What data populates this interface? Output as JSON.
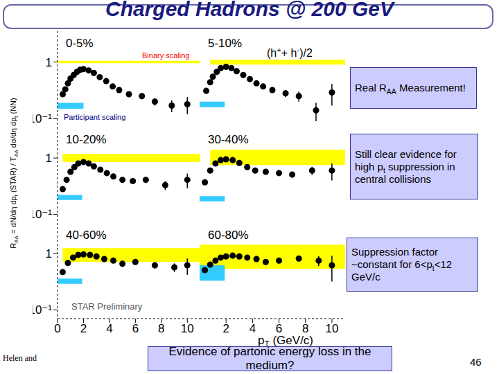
{
  "chart_data": [
    {
      "type": "scatter",
      "title": "0-5%",
      "color": "#000000",
      "marker": "circle",
      "log": "y",
      "x": [
        0.4,
        0.6,
        0.8,
        1.0,
        1.25,
        1.5,
        1.75,
        2.0,
        2.4,
        2.8,
        3.25,
        3.75,
        4.25,
        4.75,
        5.5,
        6.5,
        7.5,
        8.8,
        10
      ],
      "values": [
        0.27,
        0.33,
        0.42,
        0.51,
        0.59,
        0.67,
        0.73,
        0.75,
        0.71,
        0.64,
        0.54,
        0.46,
        0.37,
        0.32,
        0.27,
        0.25,
        0.2,
        0.17,
        0.18
      ],
      "errors": [
        0.02,
        0.02,
        0.02,
        0.03,
        0.03,
        0.03,
        0.04,
        0.04,
        0.04,
        0.04,
        0.03,
        0.03,
        0.03,
        0.03,
        0.03,
        0.03,
        0.03,
        0.04,
        0.06
      ],
      "xlim": [
        0,
        11
      ],
      "xticks": [
        0,
        2,
        4,
        6,
        8,
        10
      ],
      "ylim": [
        0.07,
        3.5
      ],
      "yticks": [
        {
          "value": 0.1,
          "label": "10⁻¹"
        },
        1
      ],
      "tick_labels": "y",
      "binary_scaling": {
        "x": [
          0,
          11
        ],
        "y": [
          0.95,
          1.05
        ],
        "color": "#ffff00"
      },
      "participant_scaling": {
        "x": [
          0,
          2
        ],
        "y": [
          0.15,
          0.19
        ],
        "color": "#33ccff"
      },
      "annotations": [
        {
          "text": "Binary scaling",
          "color": "#ff0000"
        },
        {
          "text": "Participant scaling",
          "color": "#000080"
        }
      ]
    },
    {
      "type": "scatter",
      "title": "5-10%",
      "color": "#000000",
      "marker": "circle",
      "log": "y",
      "x": [
        0.5,
        0.8,
        1.0,
        1.3,
        1.6,
        2.0,
        2.4,
        2.8,
        3.3,
        3.8,
        4.3,
        4.8,
        5.5,
        6.5,
        7.5,
        8.8,
        10
      ],
      "values": [
        0.31,
        0.44,
        0.55,
        0.67,
        0.78,
        0.82,
        0.78,
        0.69,
        0.59,
        0.5,
        0.42,
        0.37,
        0.32,
        0.28,
        0.25,
        0.14,
        0.29
      ],
      "errors": [
        0.02,
        0.02,
        0.03,
        0.03,
        0.04,
        0.04,
        0.04,
        0.04,
        0.03,
        0.03,
        0.03,
        0.03,
        0.03,
        0.04,
        0.05,
        0.05,
        0.12
      ],
      "xlim": [
        0,
        11
      ],
      "xticks": [
        2,
        4,
        6,
        8,
        10
      ],
      "ylim": [
        0.07,
        3.5
      ],
      "yticks": [
        {
          "value": 0.1,
          "label": "10⁻¹"
        },
        1
      ],
      "tick_labels": false,
      "binary_scaling": {
        "x": [
          0.8,
          11
        ],
        "y": [
          0.9,
          1.1
        ],
        "color": "#ffff00"
      },
      "participant_scaling": {
        "x": [
          0,
          1.9
        ],
        "y": [
          0.16,
          0.2
        ],
        "color": "#33ccff"
      }
    },
    {
      "type": "scatter",
      "title": "10-20%",
      "color": "#000000",
      "marker": "circle",
      "log": "y",
      "x": [
        0.4,
        0.7,
        1.0,
        1.3,
        1.6,
        2.0,
        2.4,
        2.8,
        3.3,
        3.8,
        4.3,
        5.0,
        5.8,
        6.8,
        8.3,
        10
      ],
      "values": [
        0.28,
        0.41,
        0.57,
        0.69,
        0.8,
        0.85,
        0.8,
        0.71,
        0.62,
        0.54,
        0.47,
        0.41,
        0.39,
        0.41,
        0.33,
        0.41
      ],
      "errors": [
        0.02,
        0.02,
        0.03,
        0.03,
        0.04,
        0.04,
        0.04,
        0.04,
        0.03,
        0.03,
        0.03,
        0.03,
        0.04,
        0.05,
        0.06,
        0.12
      ],
      "xlim": [
        0,
        11
      ],
      "xticks": [
        0,
        2,
        4,
        6,
        8,
        10
      ],
      "ylim": [
        0.07,
        3.5
      ],
      "yticks": [
        {
          "value": 0.1,
          "label": "10⁻¹"
        },
        1
      ],
      "tick_labels": "y",
      "binary_scaling": {
        "x": [
          0.4,
          11
        ],
        "y": [
          0.85,
          1.18
        ],
        "color": "#ffff00"
      },
      "participant_scaling": {
        "x": [
          0,
          1.9
        ],
        "y": [
          0.18,
          0.22
        ],
        "color": "#33ccff"
      }
    },
    {
      "type": "scatter",
      "title": "30-40%",
      "color": "#000000",
      "marker": "circle",
      "log": "y",
      "x": [
        0.4,
        0.8,
        1.2,
        1.6,
        2.0,
        2.5,
        3.0,
        3.6,
        4.2,
        5.0,
        6.0,
        7.0,
        8.5,
        10
      ],
      "values": [
        0.37,
        0.6,
        0.8,
        0.92,
        0.95,
        0.92,
        0.82,
        0.69,
        0.6,
        0.57,
        0.54,
        0.51,
        0.6,
        0.6
      ],
      "errors": [
        0.02,
        0.03,
        0.04,
        0.04,
        0.05,
        0.05,
        0.04,
        0.04,
        0.04,
        0.04,
        0.05,
        0.06,
        0.1,
        0.2
      ],
      "xlim": [
        0,
        11
      ],
      "xticks": [
        2,
        4,
        6,
        8,
        10
      ],
      "ylim": [
        0.07,
        3.5
      ],
      "yticks": [
        {
          "value": 0.1,
          "label": "10⁻¹"
        },
        1
      ],
      "tick_labels": false,
      "binary_scaling": {
        "x": [
          0.8,
          11
        ],
        "y": [
          0.75,
          1.4
        ],
        "color": "#ffff00"
      },
      "participant_scaling": {
        "x": [
          0,
          1.9
        ],
        "y": [
          0.17,
          0.21
        ],
        "color": "#33ccff"
      }
    },
    {
      "type": "scatter",
      "title": "40-60%",
      "color": "#000000",
      "marker": "circle",
      "log": "y",
      "x": [
        0.4,
        0.8,
        1.2,
        1.6,
        2.0,
        2.5,
        3.0,
        3.6,
        4.3,
        5.0,
        6.0,
        7.5,
        9.0,
        10
      ],
      "values": [
        0.47,
        0.68,
        0.85,
        0.95,
        0.97,
        0.95,
        0.89,
        0.8,
        0.75,
        0.66,
        0.71,
        0.62,
        0.57,
        0.62
      ],
      "errors": [
        0.02,
        0.03,
        0.04,
        0.05,
        0.05,
        0.05,
        0.05,
        0.04,
        0.04,
        0.05,
        0.06,
        0.08,
        0.1,
        0.2
      ],
      "xlim": [
        0,
        11
      ],
      "xticks": [
        0,
        2,
        4,
        6,
        8,
        10
      ],
      "ylim": [
        0.07,
        3.5
      ],
      "yticks": [
        {
          "value": 0.1,
          "label": "10⁻¹"
        },
        1
      ],
      "binary_scaling": {
        "x": [
          0.4,
          11
        ],
        "y": [
          0.71,
          1.25
        ],
        "color": "#ffff00"
      },
      "participant_scaling": {
        "x": [
          0,
          1.9
        ],
        "y": [
          0.29,
          0.36
        ],
        "color": "#33ccff"
      },
      "annotations": [
        {
          "text": "STAR Preliminary",
          "color": "#555555"
        }
      ]
    },
    {
      "type": "scatter",
      "title": "60-80%",
      "color": "#000000",
      "marker": "circle",
      "log": "y",
      "x": [
        0.4,
        0.8,
        1.2,
        1.6,
        2.0,
        2.5,
        3.0,
        3.6,
        4.3,
        5.0,
        6.0,
        7.5,
        9.0,
        10
      ],
      "values": [
        0.51,
        0.64,
        0.75,
        0.85,
        0.89,
        0.92,
        0.89,
        0.85,
        0.8,
        0.71,
        0.75,
        0.82,
        0.75,
        0.62
      ],
      "errors": [
        0.02,
        0.03,
        0.04,
        0.04,
        0.05,
        0.05,
        0.05,
        0.05,
        0.05,
        0.06,
        0.08,
        0.1,
        0.15,
        0.3
      ],
      "xlim": [
        0,
        11
      ],
      "xticks": [
        2,
        4,
        6,
        8,
        10
      ],
      "ylim": [
        0.07,
        3.5
      ],
      "yticks": [
        {
          "value": 0.1,
          "label": "10⁻¹"
        },
        1
      ],
      "tick_labels": "x",
      "binary_scaling": {
        "x": [
          0,
          11
        ],
        "y": [
          0.54,
          1.44
        ],
        "color": "#ffff00"
      },
      "participant_scaling": {
        "x": [
          0,
          1.9
        ],
        "y": [
          0.33,
          0.62
        ],
        "color": "#33ccff"
      }
    }
  ],
  "slide": {
    "title": "Charged Hadrons @ 200 GeV",
    "note": [
      "(h",
      {
        "sup": "+"
      },
      "+ h",
      {
        "sup": "-"
      },
      ")/2"
    ],
    "y_label": [
      "R",
      {
        "sub": "AA"
      },
      " = dN/dη dp",
      {
        "sub": "t"
      },
      " (STAR) / T",
      {
        "sub": "AA"
      },
      " dσ/dη dp",
      {
        "sub": "t"
      },
      " (NN)"
    ],
    "x_label": [
      "p",
      {
        "sub": "T"
      },
      " (GeV/c)"
    ],
    "boxes": [
      [
        "Real R",
        {
          "sub": "AA"
        },
        " Measurement!"
      ],
      [
        "Still clear evidence for high p",
        {
          "sub": "t"
        },
        " suppression in central collisions"
      ],
      [
        "Suppression factor ~constant for 6<p",
        {
          "sub": "t"
        },
        "<12 GeV/c"
      ],
      [
        "Evidence of partonic energy loss in the medium?"
      ]
    ],
    "footer": "Helen and",
    "page": "46"
  }
}
